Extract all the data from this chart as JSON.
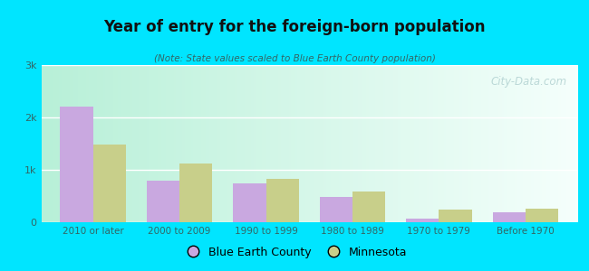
{
  "title": "Year of entry for the foreign-born population",
  "subtitle": "(Note: State values scaled to Blue Earth County population)",
  "categories": [
    "2010 or later",
    "2000 to 2009",
    "1990 to 1999",
    "1980 to 1989",
    "1970 to 1979",
    "Before 1970"
  ],
  "blue_earth": [
    2200,
    800,
    750,
    490,
    70,
    185
  ],
  "minnesota": [
    1480,
    1120,
    820,
    590,
    250,
    265
  ],
  "bar_color_blue_earth": "#c9a8e0",
  "bar_color_minnesota": "#c8cf8a",
  "background_outer": "#00e5ff",
  "background_inner_left": "#b8f0d8",
  "background_inner_right": "#f5fffc",
  "ylim": [
    0,
    3000
  ],
  "yticks": [
    0,
    1000,
    2000,
    3000
  ],
  "ytick_labels": [
    "0",
    "1k",
    "2k",
    "3k"
  ],
  "legend_labels": [
    "Blue Earth County",
    "Minnesota"
  ],
  "bar_width": 0.38,
  "watermark": "City-Data.com"
}
